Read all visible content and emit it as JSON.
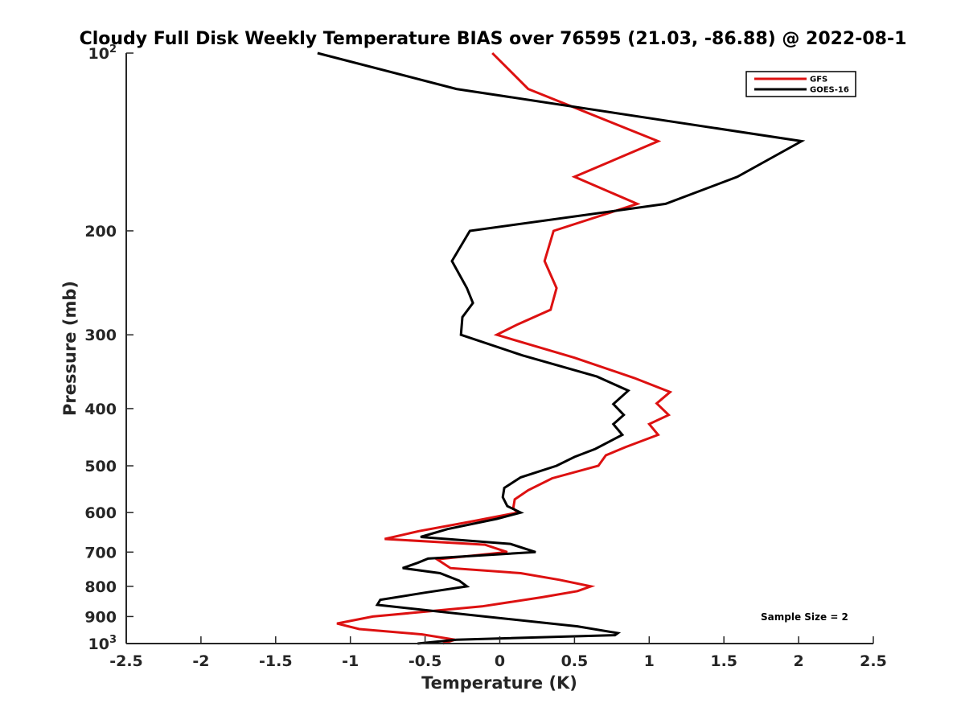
{
  "chart_data": {
    "type": "line",
    "title": "Cloudy Full Disk Weekly Temperature BIAS over 76595 (21.03, -86.88) @ 2022-08-1",
    "xlabel": "Temperature (K)",
    "ylabel": "Pressure (mb)",
    "xlim": [
      -2.5,
      2.5
    ],
    "ylim": [
      100,
      1000
    ],
    "yscale": "log",
    "yreversed": true,
    "xticks": [
      {
        "value": -2.5,
        "label": "-2.5"
      },
      {
        "value": -2,
        "label": "-2"
      },
      {
        "value": -1.5,
        "label": "-1.5"
      },
      {
        "value": -1,
        "label": "-1"
      },
      {
        "value": -0.5,
        "label": "-0.5"
      },
      {
        "value": 0,
        "label": "0"
      },
      {
        "value": 0.5,
        "label": "0.5"
      },
      {
        "value": 1,
        "label": "1"
      },
      {
        "value": 1.5,
        "label": "1.5"
      },
      {
        "value": 2,
        "label": "2"
      },
      {
        "value": 2.5,
        "label": "2.5"
      }
    ],
    "yticks": [
      {
        "value": 100,
        "base": "10",
        "exp": "2"
      },
      {
        "value": 200,
        "label": "200"
      },
      {
        "value": 300,
        "label": "300"
      },
      {
        "value": 400,
        "label": "400"
      },
      {
        "value": 500,
        "label": "500"
      },
      {
        "value": 600,
        "label": "600"
      },
      {
        "value": 700,
        "label": "700"
      },
      {
        "value": 800,
        "label": "800"
      },
      {
        "value": 900,
        "label": "900"
      },
      {
        "value": 1000,
        "base": "10",
        "exp": "3"
      }
    ],
    "grid": false,
    "legend": {
      "position": "top-right"
    },
    "annotation": "Sample Size = 2",
    "series": [
      {
        "name": "GFS",
        "color": "#dd1111",
        "points": [
          {
            "x": -0.05,
            "y": 100
          },
          {
            "x": 0.19,
            "y": 115
          },
          {
            "x": 1.06,
            "y": 141
          },
          {
            "x": 0.5,
            "y": 162
          },
          {
            "x": 0.92,
            "y": 180
          },
          {
            "x": 0.36,
            "y": 200
          },
          {
            "x": 0.3,
            "y": 225
          },
          {
            "x": 0.38,
            "y": 250
          },
          {
            "x": 0.34,
            "y": 272
          },
          {
            "x": 0.12,
            "y": 288
          },
          {
            "x": -0.02,
            "y": 300
          },
          {
            "x": 0.5,
            "y": 328
          },
          {
            "x": 0.9,
            "y": 355
          },
          {
            "x": 1.14,
            "y": 375
          },
          {
            "x": 1.05,
            "y": 392
          },
          {
            "x": 1.13,
            "y": 410
          },
          {
            "x": 1.0,
            "y": 425
          },
          {
            "x": 1.06,
            "y": 443
          },
          {
            "x": 0.84,
            "y": 465
          },
          {
            "x": 0.71,
            "y": 480
          },
          {
            "x": 0.66,
            "y": 500
          },
          {
            "x": 0.35,
            "y": 525
          },
          {
            "x": 0.19,
            "y": 550
          },
          {
            "x": 0.1,
            "y": 570
          },
          {
            "x": 0.09,
            "y": 590
          },
          {
            "x": 0.12,
            "y": 600
          },
          {
            "x": -0.2,
            "y": 622
          },
          {
            "x": -0.54,
            "y": 645
          },
          {
            "x": -0.77,
            "y": 665
          },
          {
            "x": -0.1,
            "y": 680
          },
          {
            "x": 0.05,
            "y": 700
          },
          {
            "x": -0.42,
            "y": 720
          },
          {
            "x": -0.33,
            "y": 745
          },
          {
            "x": 0.14,
            "y": 760
          },
          {
            "x": 0.4,
            "y": 780
          },
          {
            "x": 0.61,
            "y": 800
          },
          {
            "x": 0.52,
            "y": 815
          },
          {
            "x": 0.28,
            "y": 835
          },
          {
            "x": -0.12,
            "y": 865
          },
          {
            "x": -0.85,
            "y": 900
          },
          {
            "x": -1.09,
            "y": 925
          },
          {
            "x": -0.94,
            "y": 945
          },
          {
            "x": -0.52,
            "y": 965
          },
          {
            "x": -0.3,
            "y": 985
          },
          {
            "x": -0.38,
            "y": 1000
          }
        ]
      },
      {
        "name": "GOES-16",
        "color": "#000000",
        "points": [
          {
            "x": -1.22,
            "y": 100
          },
          {
            "x": -0.29,
            "y": 115
          },
          {
            "x": 2.02,
            "y": 141
          },
          {
            "x": 1.59,
            "y": 162
          },
          {
            "x": 1.11,
            "y": 180
          },
          {
            "x": -0.2,
            "y": 200
          },
          {
            "x": -0.32,
            "y": 225
          },
          {
            "x": -0.22,
            "y": 250
          },
          {
            "x": -0.18,
            "y": 265
          },
          {
            "x": -0.25,
            "y": 280
          },
          {
            "x": -0.26,
            "y": 300
          },
          {
            "x": 0.15,
            "y": 325
          },
          {
            "x": 0.65,
            "y": 353
          },
          {
            "x": 0.86,
            "y": 373
          },
          {
            "x": 0.76,
            "y": 393
          },
          {
            "x": 0.83,
            "y": 410
          },
          {
            "x": 0.76,
            "y": 425
          },
          {
            "x": 0.82,
            "y": 443
          },
          {
            "x": 0.64,
            "y": 468
          },
          {
            "x": 0.5,
            "y": 483
          },
          {
            "x": 0.38,
            "y": 500
          },
          {
            "x": 0.14,
            "y": 523
          },
          {
            "x": 0.03,
            "y": 545
          },
          {
            "x": 0.02,
            "y": 565
          },
          {
            "x": 0.05,
            "y": 585
          },
          {
            "x": 0.14,
            "y": 600
          },
          {
            "x": -0.02,
            "y": 615
          },
          {
            "x": -0.35,
            "y": 640
          },
          {
            "x": -0.53,
            "y": 660
          },
          {
            "x": 0.07,
            "y": 678
          },
          {
            "x": 0.24,
            "y": 700
          },
          {
            "x": -0.48,
            "y": 718
          },
          {
            "x": -0.55,
            "y": 730
          },
          {
            "x": -0.65,
            "y": 745
          },
          {
            "x": -0.4,
            "y": 760
          },
          {
            "x": -0.27,
            "y": 783
          },
          {
            "x": -0.22,
            "y": 800
          },
          {
            "x": -0.5,
            "y": 820
          },
          {
            "x": -0.8,
            "y": 843
          },
          {
            "x": -0.82,
            "y": 860
          },
          {
            "x": -0.1,
            "y": 900
          },
          {
            "x": 0.52,
            "y": 935
          },
          {
            "x": 0.79,
            "y": 960
          },
          {
            "x": 0.77,
            "y": 968
          },
          {
            "x": -0.29,
            "y": 985
          },
          {
            "x": -0.55,
            "y": 1000
          }
        ]
      }
    ]
  }
}
